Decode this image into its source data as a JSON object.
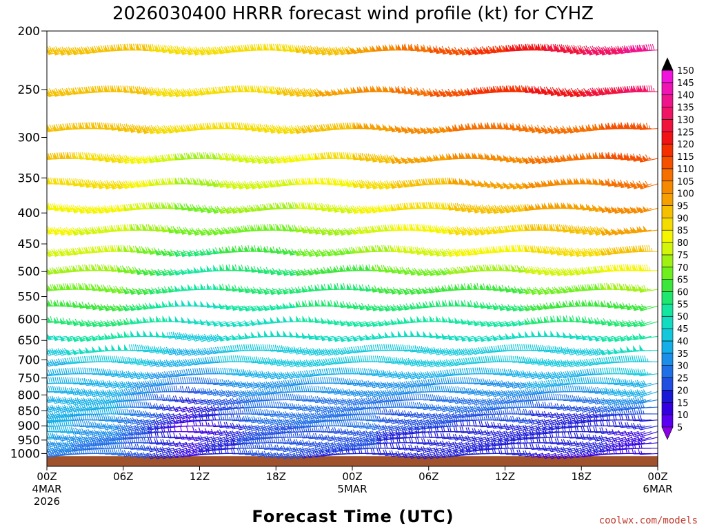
{
  "chart_data": {
    "type": "wind-barb time-height",
    "title": "2026030400 HRRR forecast wind profile (kt) for CYHZ",
    "xlabel": "Forecast Time (UTC)",
    "ylabel": "",
    "credit": "coolwx.com/models",
    "y_ticks": [
      200,
      250,
      300,
      350,
      400,
      450,
      500,
      550,
      600,
      650,
      700,
      750,
      800,
      850,
      900,
      950,
      1000
    ],
    "ylim": [
      200,
      1050
    ],
    "y_scale": "log-pressure",
    "x_ticks": [
      {
        "hour": 0,
        "label": "00Z",
        "sub1": "4MAR",
        "sub2": "2026"
      },
      {
        "hour": 6,
        "label": "06Z",
        "sub1": "",
        "sub2": ""
      },
      {
        "hour": 12,
        "label": "12Z",
        "sub1": "",
        "sub2": ""
      },
      {
        "hour": 18,
        "label": "18Z",
        "sub1": "",
        "sub2": ""
      },
      {
        "hour": 24,
        "label": "00Z",
        "sub1": "5MAR",
        "sub2": ""
      },
      {
        "hour": 30,
        "label": "06Z",
        "sub1": "",
        "sub2": ""
      },
      {
        "hour": 36,
        "label": "12Z",
        "sub1": "",
        "sub2": ""
      },
      {
        "hour": 42,
        "label": "18Z",
        "sub1": "",
        "sub2": ""
      },
      {
        "hour": 48,
        "label": "00Z",
        "sub1": "6MAR",
        "sub2": ""
      }
    ],
    "xlim": [
      0,
      48
    ],
    "colorbar": {
      "levels": [
        5,
        10,
        15,
        20,
        25,
        30,
        35,
        40,
        45,
        50,
        55,
        60,
        65,
        70,
        75,
        80,
        85,
        90,
        95,
        100,
        105,
        110,
        115,
        120,
        125,
        130,
        135,
        140,
        145,
        150
      ],
      "colors": [
        "#8a00e6",
        "#5a00f0",
        "#3300e0",
        "#1a1ad6",
        "#1f4ee0",
        "#1f6fe6",
        "#1a8ee8",
        "#14aee8",
        "#14c8dc",
        "#14dcc0",
        "#14e6a0",
        "#1ee66e",
        "#3ce63c",
        "#6ef01e",
        "#a0f014",
        "#d2f50a",
        "#f5f500",
        "#f5dc00",
        "#f5c000",
        "#f5a000",
        "#f58a00",
        "#f57000",
        "#f55000",
        "#f53000",
        "#f01414",
        "#f0143c",
        "#f01464",
        "#f0148c",
        "#f014b4",
        "#f014dc"
      ]
    },
    "terrain_color": "#a0522d",
    "surface_pressure_approx": 1010,
    "levels_hpa": [
      215,
      252,
      290,
      325,
      358,
      393,
      427,
      463,
      498,
      535,
      570,
      605,
      640,
      675,
      705,
      738,
      765,
      790,
      815,
      838,
      860,
      880,
      900,
      920,
      940,
      960,
      980,
      1000
    ],
    "wind_speed_kt": {
      "description": "approximate barb speeds (kt) read from barb colors; rows = levels_hpa, columns = forecast hours 0,6,12,18,24,30,36,42,48",
      "hours": [
        0,
        6,
        12,
        18,
        24,
        30,
        36,
        42,
        48
      ],
      "rows": [
        [
          95,
          95,
          90,
          90,
          95,
          110,
          120,
          130,
          140
        ],
        [
          95,
          95,
          90,
          90,
          100,
          110,
          120,
          125,
          135
        ],
        [
          95,
          95,
          90,
          90,
          95,
          105,
          110,
          110,
          115
        ],
        [
          95,
          90,
          75,
          80,
          90,
          100,
          105,
          110,
          115
        ],
        [
          90,
          90,
          75,
          80,
          85,
          95,
          100,
          105,
          110
        ],
        [
          85,
          85,
          70,
          75,
          80,
          90,
          95,
          100,
          105
        ],
        [
          85,
          80,
          70,
          70,
          75,
          85,
          90,
          95,
          100
        ],
        [
          80,
          80,
          60,
          65,
          70,
          80,
          85,
          90,
          95
        ],
        [
          75,
          75,
          55,
          60,
          65,
          70,
          75,
          80,
          85
        ],
        [
          70,
          70,
          55,
          60,
          60,
          65,
          65,
          70,
          75
        ],
        [
          65,
          65,
          50,
          55,
          60,
          60,
          60,
          65,
          65
        ],
        [
          60,
          60,
          50,
          50,
          55,
          55,
          55,
          60,
          60
        ],
        [
          50,
          55,
          45,
          50,
          50,
          50,
          50,
          50,
          55
        ],
        [
          45,
          50,
          40,
          45,
          45,
          45,
          45,
          45,
          50
        ],
        [
          40,
          45,
          40,
          45,
          45,
          45,
          45,
          45,
          45
        ],
        [
          40,
          40,
          35,
          40,
          40,
          40,
          40,
          40,
          45
        ],
        [
          40,
          40,
          30,
          35,
          35,
          35,
          35,
          40,
          40
        ],
        [
          40,
          40,
          25,
          35,
          35,
          35,
          35,
          35,
          40
        ],
        [
          40,
          40,
          20,
          30,
          30,
          30,
          30,
          30,
          35
        ],
        [
          40,
          40,
          15,
          30,
          30,
          30,
          30,
          25,
          30
        ],
        [
          40,
          40,
          15,
          30,
          30,
          25,
          25,
          20,
          25
        ],
        [
          40,
          35,
          15,
          30,
          30,
          25,
          25,
          20,
          20
        ],
        [
          40,
          35,
          10,
          25,
          30,
          25,
          20,
          20,
          20
        ],
        [
          40,
          35,
          10,
          25,
          25,
          20,
          20,
          20,
          15
        ],
        [
          40,
          30,
          15,
          25,
          25,
          20,
          20,
          20,
          15
        ],
        [
          35,
          30,
          15,
          25,
          25,
          20,
          20,
          20,
          15
        ],
        [
          35,
          30,
          15,
          25,
          25,
          20,
          20,
          20,
          15
        ],
        [
          30,
          30,
          15,
          25,
          20,
          20,
          20,
          15,
          15
        ]
      ]
    }
  }
}
